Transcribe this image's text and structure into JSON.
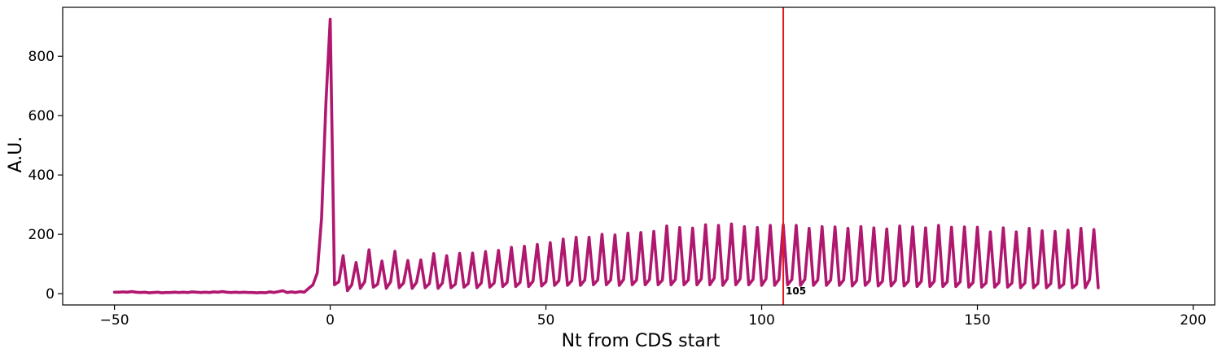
{
  "chart_data": {
    "type": "line",
    "title": "",
    "xlabel": "Nt from CDS start",
    "ylabel": "A.U.",
    "xlim": [
      -62,
      205
    ],
    "ylim": [
      -38,
      965
    ],
    "xticks": [
      -50,
      0,
      50,
      100,
      150,
      200
    ],
    "yticks": [
      0,
      200,
      400,
      600,
      800
    ],
    "xtick_labels": [
      "−50",
      "0",
      "50",
      "100",
      "150",
      "200"
    ],
    "ytick_labels": [
      "0",
      "200",
      "400",
      "600",
      "800"
    ],
    "grid": false,
    "legend": "none",
    "colors": {
      "series": "#b0176f",
      "marker_line": "#e41a1c",
      "axes": "#000000"
    },
    "vline": {
      "x": 105,
      "label": "105"
    },
    "series": [
      {
        "x_start": -50,
        "x_step": 1,
        "values": [
          5,
          5,
          6,
          5,
          7,
          5,
          4,
          5,
          3,
          4,
          5,
          3,
          4,
          4,
          5,
          4,
          5,
          4,
          6,
          5,
          4,
          5,
          4,
          6,
          5,
          7,
          5,
          4,
          5,
          4,
          5,
          4,
          4,
          3,
          4,
          3,
          6,
          4,
          7,
          10,
          4,
          6,
          4,
          7,
          5,
          18,
          30,
          70,
          255,
          640,
          925,
          30,
          40,
          128,
          10,
          30,
          105,
          18,
          40,
          148,
          22,
          32,
          110,
          18,
          40,
          143,
          20,
          36,
          112,
          18,
          38,
          114,
          20,
          34,
          135,
          18,
          36,
          128,
          20,
          32,
          136,
          22,
          34,
          137,
          20,
          36,
          142,
          22,
          36,
          146,
          24,
          38,
          156,
          24,
          38,
          160,
          24,
          42,
          166,
          26,
          40,
          172,
          28,
          44,
          184,
          28,
          44,
          190,
          28,
          46,
          190,
          30,
          46,
          200,
          30,
          46,
          198,
          28,
          48,
          204,
          30,
          46,
          206,
          30,
          48,
          210,
          30,
          46,
          228,
          30,
          48,
          223,
          30,
          46,
          221,
          30,
          50,
          232,
          30,
          52,
          230,
          28,
          50,
          235,
          30,
          50,
          226,
          30,
          48,
          223,
          28,
          50,
          230,
          28,
          48,
          232,
          30,
          48,
          230,
          28,
          48,
          220,
          28,
          46,
          226,
          28,
          46,
          225,
          28,
          46,
          220,
          26,
          44,
          226,
          28,
          44,
          222,
          26,
          42,
          218,
          26,
          44,
          228,
          26,
          42,
          225,
          24,
          42,
          222,
          24,
          42,
          230,
          24,
          40,
          224,
          24,
          40,
          225,
          22,
          38,
          224,
          22,
          36,
          208,
          22,
          38,
          222,
          22,
          36,
          208,
          20,
          36,
          220,
          20,
          34,
          212,
          20,
          34,
          210,
          20,
          32,
          214,
          20,
          32,
          220,
          20,
          48,
          216,
          20
        ]
      }
    ]
  }
}
